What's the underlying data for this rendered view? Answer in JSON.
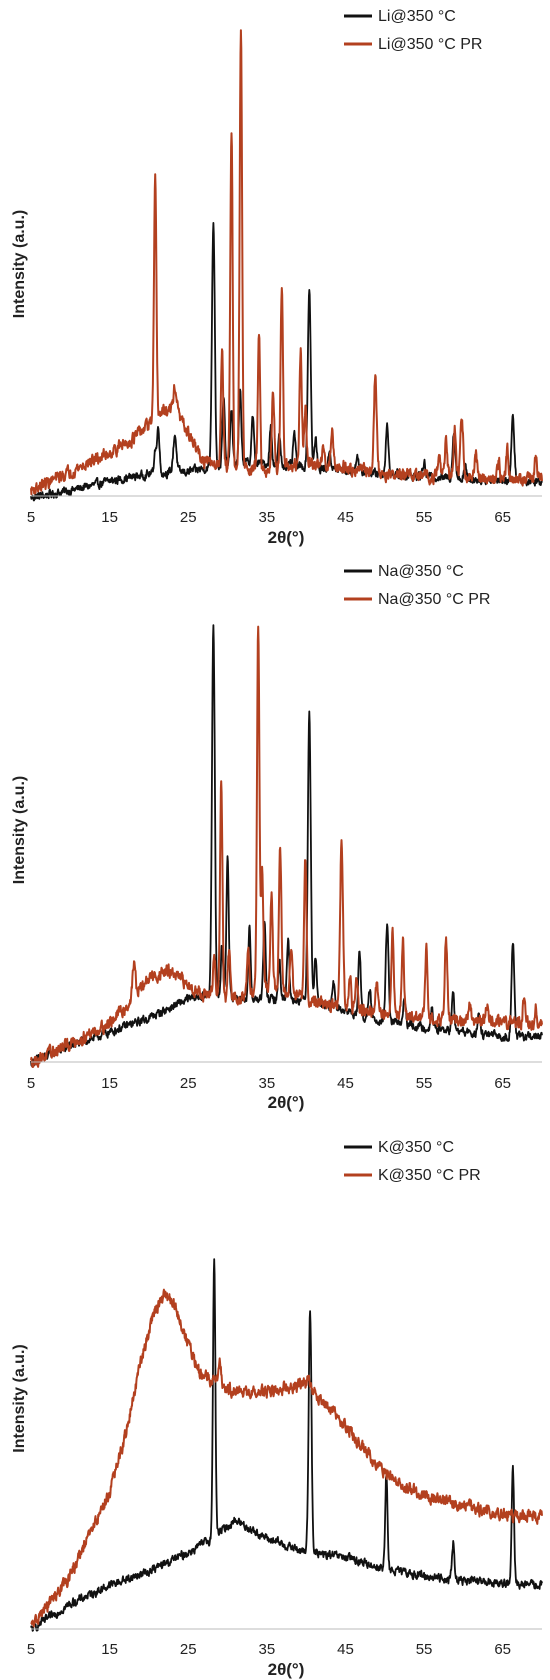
{
  "chart_data": [
    {
      "type": "line",
      "xlabel": "2θ(°)",
      "ylabel": "Intensity (a.u.)",
      "xlim": [
        5,
        70
      ],
      "xticks": [
        5,
        15,
        25,
        35,
        45,
        55,
        65
      ],
      "ylim": [
        0,
        100
      ],
      "legend_position": "top-right",
      "series": [
        {
          "name": "Li@350 °C",
          "color": "#111111",
          "baseline": [
            [
              5,
              0.5
            ],
            [
              10,
              2
            ],
            [
              15,
              4
            ],
            [
              20,
              5.5
            ],
            [
              25,
              6
            ],
            [
              28,
              7
            ],
            [
              32,
              8
            ],
            [
              40,
              7
            ],
            [
              50,
              5.5
            ],
            [
              60,
              4.5
            ],
            [
              70,
              4
            ]
          ],
          "peaks": [
            [
              20.8,
              5,
              0.15
            ],
            [
              21.2,
              10,
              0.15
            ],
            [
              23.3,
              8,
              0.2
            ],
            [
              28.2,
              52,
              0.18
            ],
            [
              29.5,
              14,
              0.15
            ],
            [
              30.5,
              12,
              0.15
            ],
            [
              31.6,
              15,
              0.15
            ],
            [
              33.2,
              10,
              0.15
            ],
            [
              35.5,
              8,
              0.15
            ],
            [
              36.6,
              6,
              0.15
            ],
            [
              38.5,
              7,
              0.15
            ],
            [
              40.4,
              38,
              0.18
            ],
            [
              41.2,
              6,
              0.15
            ],
            [
              43,
              4,
              0.15
            ],
            [
              46.5,
              4,
              0.15
            ],
            [
              50.3,
              10,
              0.18
            ],
            [
              55,
              3,
              0.15
            ],
            [
              58.8,
              10,
              0.18
            ],
            [
              60.2,
              3,
              0.15
            ],
            [
              66.3,
              13,
              0.18
            ]
          ]
        },
        {
          "name": "Li@350 °C PR",
          "color": "#b3401f",
          "baseline": [
            [
              5,
              2
            ],
            [
              10,
              6
            ],
            [
              15,
              10
            ],
            [
              18,
              13
            ],
            [
              20,
              16
            ],
            [
              22,
              19
            ],
            [
              23.5,
              19
            ],
            [
              25,
              14
            ],
            [
              27,
              8
            ],
            [
              30,
              7
            ],
            [
              35,
              6.5
            ],
            [
              40,
              7.5
            ],
            [
              45,
              7
            ],
            [
              50,
              5.5
            ],
            [
              55,
              5
            ],
            [
              60,
              5
            ],
            [
              65,
              4.5
            ],
            [
              70,
              4.5
            ]
          ],
          "peaks": [
            [
              20.8,
              50,
              0.15
            ],
            [
              23.3,
              5,
              0.2
            ],
            [
              29.3,
              25,
              0.15
            ],
            [
              30.5,
              72,
              0.15
            ],
            [
              31.7,
              93,
              0.15
            ],
            [
              34,
              28,
              0.15
            ],
            [
              35.8,
              17,
              0.15
            ],
            [
              36.9,
              37,
              0.15
            ],
            [
              39.3,
              24,
              0.15
            ],
            [
              39.9,
              12,
              0.15
            ],
            [
              42.2,
              5,
              0.15
            ],
            [
              43.3,
              8,
              0.15
            ],
            [
              48.8,
              20,
              0.18
            ],
            [
              56.9,
              5,
              0.15
            ],
            [
              57.8,
              8,
              0.15
            ],
            [
              58.9,
              10,
              0.15
            ],
            [
              59.8,
              12,
              0.18
            ],
            [
              61.6,
              5,
              0.15
            ],
            [
              64.5,
              4,
              0.15
            ],
            [
              65.6,
              6,
              0.15
            ],
            [
              69.2,
              4,
              0.15
            ]
          ]
        }
      ]
    },
    {
      "type": "line",
      "xlabel": "2θ(°)",
      "ylabel": "Intensity (a.u.)",
      "xlim": [
        5,
        70
      ],
      "xticks": [
        5,
        15,
        25,
        35,
        45,
        55,
        65
      ],
      "ylim": [
        0,
        100
      ],
      "legend_position": "top-right",
      "series": [
        {
          "name": "Na@350 °C",
          "color": "#111111",
          "baseline": [
            [
              5,
              0.5
            ],
            [
              10,
              4
            ],
            [
              15,
              7
            ],
            [
              20,
              10
            ],
            [
              25,
              14
            ],
            [
              28,
              15
            ],
            [
              33,
              14
            ],
            [
              40,
              14
            ],
            [
              48,
              10
            ],
            [
              55,
              8
            ],
            [
              60,
              7
            ],
            [
              65,
              6
            ],
            [
              70,
              6
            ]
          ],
          "peaks": [
            [
              28.2,
              78,
              0.18
            ],
            [
              29.3,
              10,
              0.15
            ],
            [
              30,
              30,
              0.15
            ],
            [
              32.8,
              15,
              0.15
            ],
            [
              34.7,
              16,
              0.15
            ],
            [
              36.6,
              8,
              0.15
            ],
            [
              37.7,
              13,
              0.15
            ],
            [
              40.4,
              62,
              0.18
            ],
            [
              41.2,
              10,
              0.15
            ],
            [
              43.5,
              5,
              0.15
            ],
            [
              46.8,
              14,
              0.15
            ],
            [
              48.1,
              6,
              0.15
            ],
            [
              50.3,
              20,
              0.18
            ],
            [
              52.5,
              5,
              0.15
            ],
            [
              56,
              4,
              0.15
            ],
            [
              58.7,
              8,
              0.15
            ],
            [
              62,
              4,
              0.15
            ],
            [
              66.3,
              20,
              0.18
            ]
          ]
        },
        {
          "name": "Na@350 °C PR",
          "color": "#b3401f",
          "baseline": [
            [
              5,
              0.5
            ],
            [
              10,
              4.5
            ],
            [
              15,
              9
            ],
            [
              17.5,
              13
            ],
            [
              20,
              18.5
            ],
            [
              22.5,
              20
            ],
            [
              25,
              17
            ],
            [
              27,
              15
            ],
            [
              30,
              14
            ],
            [
              33,
              15
            ],
            [
              35,
              17
            ],
            [
              38,
              15
            ],
            [
              40,
              14
            ],
            [
              45,
              12
            ],
            [
              50,
              11
            ],
            [
              55,
              10
            ],
            [
              60,
              9.5
            ],
            [
              65,
              9
            ],
            [
              70,
              9
            ]
          ],
          "peaks": [
            [
              18.1,
              7,
              0.2
            ],
            [
              28.3,
              8,
              0.15
            ],
            [
              29.2,
              47,
              0.15
            ],
            [
              30.2,
              10,
              0.15
            ],
            [
              32.6,
              10,
              0.15
            ],
            [
              33.9,
              78,
              0.15
            ],
            [
              34.4,
              25,
              0.15
            ],
            [
              35.6,
              20,
              0.15
            ],
            [
              36.7,
              30,
              0.15
            ],
            [
              38.1,
              10,
              0.15
            ],
            [
              39.9,
              30,
              0.15
            ],
            [
              44.5,
              35,
              0.18
            ],
            [
              45.6,
              7,
              0.15
            ],
            [
              46.4,
              8,
              0.15
            ],
            [
              49,
              6,
              0.15
            ],
            [
              51,
              18,
              0.15
            ],
            [
              52.3,
              16,
              0.15
            ],
            [
              55.3,
              15,
              0.15
            ],
            [
              57.8,
              17,
              0.15
            ],
            [
              60.8,
              5,
              0.15
            ],
            [
              63,
              4,
              0.15
            ],
            [
              67.7,
              5,
              0.15
            ],
            [
              69.2,
              3,
              0.15
            ]
          ]
        }
      ]
    },
    {
      "type": "line",
      "xlabel": "2θ(°)",
      "ylabel": "Intensity (a.u.)",
      "xlim": [
        5,
        70
      ],
      "xticks": [
        5,
        15,
        25,
        35,
        45,
        55,
        65
      ],
      "ylim": [
        0,
        100
      ],
      "legend_position": "top-right",
      "series": [
        {
          "name": "K@350 °C",
          "color": "#111111",
          "baseline": [
            [
              5,
              0.5
            ],
            [
              10,
              6
            ],
            [
              15,
              10
            ],
            [
              20,
              13
            ],
            [
              25,
              17
            ],
            [
              28,
              20
            ],
            [
              31,
              24
            ],
            [
              35,
              20
            ],
            [
              40,
              17
            ],
            [
              45,
              16
            ],
            [
              50,
              13.5
            ],
            [
              55,
              12
            ],
            [
              60,
              11
            ],
            [
              65,
              10.5
            ],
            [
              70,
              10
            ]
          ],
          "peaks": [
            [
              28.3,
              60,
              0.15
            ],
            [
              40.5,
              52,
              0.18
            ],
            [
              50.2,
              20,
              0.15
            ],
            [
              58.7,
              8,
              0.15
            ],
            [
              66.3,
              24,
              0.15
            ]
          ]
        },
        {
          "name": "K@350 °C PR",
          "color": "#b3401f",
          "baseline": [
            [
              5,
              1
            ],
            [
              10,
              12
            ],
            [
              15,
              30
            ],
            [
              17,
              42
            ],
            [
              19,
              58
            ],
            [
              20.5,
              68
            ],
            [
              22,
              72
            ],
            [
              23,
              71
            ],
            [
              24.5,
              64
            ],
            [
              26.5,
              55
            ],
            [
              28,
              54
            ],
            [
              30,
              52
            ],
            [
              33,
              51
            ],
            [
              36,
              52
            ],
            [
              40,
              53
            ],
            [
              43,
              48
            ],
            [
              46,
              42
            ],
            [
              50,
              34
            ],
            [
              55,
              29
            ],
            [
              60,
              27
            ],
            [
              65,
              25
            ],
            [
              70,
              24.5
            ]
          ],
          "peaks": [
            [
              29,
              5,
              0.2
            ],
            [
              40.4,
              2,
              0.2
            ]
          ]
        }
      ]
    }
  ]
}
